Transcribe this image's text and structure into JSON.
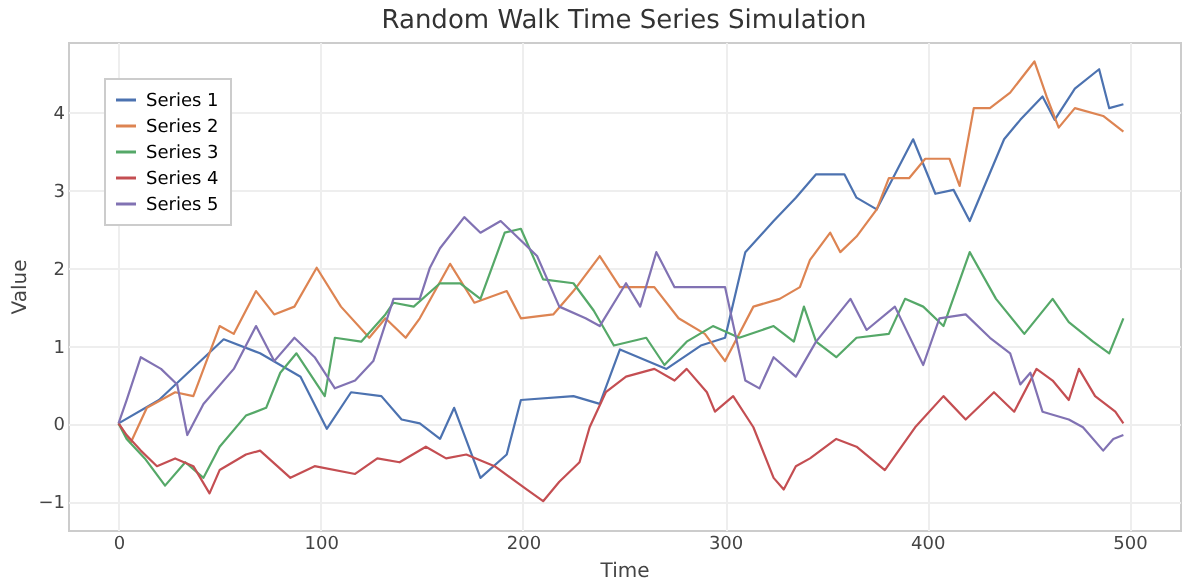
{
  "chart_data": {
    "type": "line",
    "title": "Random Walk Time Series Simulation",
    "xlabel": "Time",
    "ylabel": "Value",
    "xlim": [
      -25,
      525
    ],
    "ylim": [
      -1.37,
      4.9
    ],
    "xticks": [
      0,
      100,
      200,
      300,
      400,
      500
    ],
    "yticks": [
      -1,
      0,
      1,
      2,
      3,
      4
    ],
    "grid": true,
    "legend": "top left",
    "series": [
      {
        "name": "Series 1",
        "color": "#4c72b0",
        "x": [
          0,
          20,
          52,
          70,
          90,
          103,
          115,
          130,
          140,
          149,
          159,
          166,
          179,
          192,
          199,
          225,
          238,
          248,
          271,
          288,
          300,
          310,
          324,
          335,
          345,
          359,
          365,
          375,
          393,
          404,
          413,
          421,
          438,
          446,
          457,
          463,
          473,
          485,
          490,
          497
        ],
        "values": [
          0,
          0.3,
          1.08,
          0.9,
          0.6,
          -0.07,
          0.4,
          0.35,
          0.05,
          0,
          -0.2,
          0.2,
          -0.7,
          -0.4,
          0.3,
          0.35,
          0.25,
          0.95,
          0.7,
          1.0,
          1.1,
          2.2,
          2.6,
          2.9,
          3.2,
          3.2,
          2.9,
          2.75,
          3.65,
          2.95,
          3.0,
          2.6,
          3.65,
          3.9,
          4.2,
          3.9,
          4.3,
          4.55,
          4.05,
          4.1
        ]
      },
      {
        "name": "Series 2",
        "color": "#dd8452",
        "x": [
          0,
          6,
          14,
          28,
          37,
          50,
          57,
          68,
          77,
          87,
          98,
          110,
          124,
          132,
          142,
          149,
          164,
          176,
          192,
          199,
          215,
          225,
          238,
          248,
          265,
          277,
          290,
          300,
          314,
          327,
          337,
          342,
          352,
          357,
          365,
          375,
          381,
          391,
          399,
          411,
          416,
          423,
          431,
          441,
          453,
          459,
          465,
          473,
          487,
          497
        ],
        "values": [
          0,
          -0.25,
          0.2,
          0.4,
          0.35,
          1.25,
          1.15,
          1.7,
          1.4,
          1.5,
          2.0,
          1.5,
          1.1,
          1.35,
          1.1,
          1.35,
          2.05,
          1.55,
          1.7,
          1.35,
          1.4,
          1.7,
          2.15,
          1.75,
          1.75,
          1.35,
          1.15,
          0.8,
          1.5,
          1.6,
          1.75,
          2.1,
          2.45,
          2.2,
          2.4,
          2.75,
          3.15,
          3.15,
          3.4,
          3.4,
          3.05,
          4.05,
          4.05,
          4.25,
          4.65,
          4.2,
          3.8,
          4.05,
          3.95,
          3.75
        ]
      },
      {
        "name": "Series 3",
        "color": "#55a868",
        "x": [
          0,
          4,
          13,
          23,
          33,
          42,
          50,
          63,
          73,
          80,
          88,
          102,
          107,
          120,
          132,
          136,
          146,
          159,
          169,
          179,
          191,
          199,
          210,
          225,
          235,
          245,
          261,
          270,
          281,
          294,
          307,
          324,
          334,
          339,
          345,
          355,
          365,
          381,
          389,
          398,
          408,
          421,
          434,
          448,
          462,
          470,
          482,
          490,
          497
        ],
        "values": [
          0,
          -0.2,
          -0.45,
          -0.8,
          -0.5,
          -0.7,
          -0.3,
          0.1,
          0.2,
          0.65,
          0.9,
          0.35,
          1.1,
          1.05,
          1.4,
          1.55,
          1.5,
          1.8,
          1.8,
          1.6,
          2.45,
          2.5,
          1.85,
          1.8,
          1.45,
          1.0,
          1.1,
          0.75,
          1.05,
          1.25,
          1.1,
          1.25,
          1.05,
          1.5,
          1.05,
          0.85,
          1.1,
          1.15,
          1.6,
          1.5,
          1.25,
          2.2,
          1.6,
          1.15,
          1.6,
          1.3,
          1.05,
          0.9,
          1.35
        ]
      },
      {
        "name": "Series 4",
        "color": "#c44e52",
        "x": [
          0,
          4,
          11,
          19,
          28,
          37,
          45,
          50,
          63,
          70,
          85,
          97,
          117,
          128,
          139,
          152,
          162,
          172,
          186,
          202,
          210,
          218,
          228,
          233,
          241,
          251,
          265,
          275,
          281,
          291,
          295,
          304,
          314,
          324,
          329,
          335,
          342,
          355,
          365,
          379,
          394,
          408,
          419,
          433,
          443,
          454,
          462,
          470,
          475,
          483,
          493,
          497
        ],
        "values": [
          0,
          -0.15,
          -0.35,
          -0.55,
          -0.45,
          -0.55,
          -0.9,
          -0.6,
          -0.4,
          -0.35,
          -0.7,
          -0.55,
          -0.65,
          -0.45,
          -0.5,
          -0.3,
          -0.45,
          -0.4,
          -0.55,
          -0.85,
          -1.0,
          -0.75,
          -0.5,
          -0.05,
          0.4,
          0.6,
          0.7,
          0.55,
          0.7,
          0.4,
          0.15,
          0.35,
          -0.05,
          -0.7,
          -0.85,
          -0.55,
          -0.45,
          -0.2,
          -0.3,
          -0.6,
          -0.05,
          0.35,
          0.05,
          0.4,
          0.15,
          0.7,
          0.55,
          0.3,
          0.7,
          0.35,
          0.15,
          0.0
        ]
      },
      {
        "name": "Series 5",
        "color": "#8172b3",
        "x": [
          0,
          4,
          11,
          21,
          29,
          34,
          42,
          57,
          68,
          77,
          87,
          97,
          107,
          117,
          126,
          136,
          149,
          154,
          159,
          171,
          179,
          189,
          207,
          218,
          231,
          238,
          251,
          258,
          266,
          275,
          288,
          300,
          310,
          317,
          324,
          335,
          345,
          362,
          370,
          384,
          398,
          406,
          419,
          431,
          441,
          446,
          451,
          457,
          470,
          477,
          487,
          492,
          497
        ],
        "values": [
          0,
          0.3,
          0.85,
          0.7,
          0.5,
          -0.15,
          0.25,
          0.7,
          1.25,
          0.8,
          1.1,
          0.85,
          0.45,
          0.55,
          0.8,
          1.6,
          1.6,
          2.0,
          2.25,
          2.65,
          2.45,
          2.6,
          2.15,
          1.5,
          1.35,
          1.25,
          1.8,
          1.5,
          2.2,
          1.75,
          1.75,
          1.75,
          0.55,
          0.45,
          0.85,
          0.6,
          1.05,
          1.6,
          1.2,
          1.5,
          0.75,
          1.35,
          1.4,
          1.1,
          0.9,
          0.5,
          0.65,
          0.15,
          0.05,
          -0.05,
          -0.35,
          -0.2,
          -0.15
        ]
      }
    ]
  }
}
